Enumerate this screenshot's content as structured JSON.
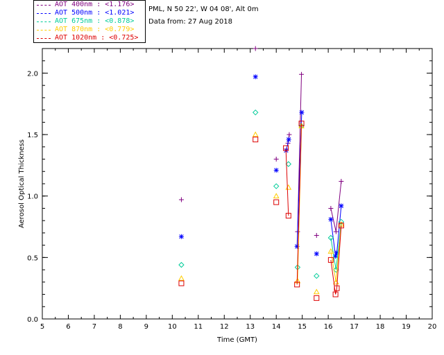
{
  "header": {
    "location": "PML, N 50 22', W 04 08', Alt 0m",
    "date": "Data from: 27 Aug 2018"
  },
  "legend": [
    {
      "label": "AOT  400nm : <1.176>",
      "color": "#800080"
    },
    {
      "label": "AOT  500nm : <1.021>",
      "color": "#0000ff"
    },
    {
      "label": "AOT  675nm : <0.878>",
      "color": "#00cc99"
    },
    {
      "label": "AOT  870nm : <0.779>",
      "color": "#ffcc00"
    },
    {
      "label": "AOT 1020nm : <0.725>",
      "color": "#dd0000"
    }
  ],
  "chart_data": {
    "type": "line",
    "title": "",
    "xlabel": "Time (GMT)",
    "ylabel": "Aerosol Optical Thickness",
    "xlim": [
      5,
      20
    ],
    "ylim": [
      0.0,
      2.2
    ],
    "xticks": [
      5,
      6,
      7,
      8,
      9,
      10,
      11,
      12,
      13,
      14,
      15,
      16,
      17,
      18,
      19,
      20
    ],
    "yticks": [
      0.0,
      0.5,
      1.0,
      1.5,
      2.0
    ],
    "ytick_labels": [
      "0.0",
      "0.5",
      "1.0",
      "1.5",
      "2.0"
    ],
    "series": [
      {
        "name": "AOT 400nm",
        "color": "#800080",
        "marker": "plus",
        "points": [
          [
            10.35,
            0.97
          ],
          [
            13.2,
            2.2
          ],
          [
            14.0,
            1.3
          ],
          [
            14.45,
            1.43
          ],
          [
            14.5,
            1.5
          ],
          [
            14.82,
            0.71
          ],
          [
            14.97,
            1.99
          ],
          [
            15.55,
            0.68
          ],
          [
            16.1,
            0.9
          ],
          [
            16.3,
            0.71
          ],
          [
            16.5,
            1.12
          ]
        ],
        "segments": [
          [
            [
              14.45,
              1.43
            ],
            [
              14.5,
              1.5
            ]
          ],
          [
            [
              14.82,
              0.71
            ],
            [
              14.97,
              1.99
            ]
          ],
          [
            [
              16.1,
              0.9
            ],
            [
              16.3,
              0.71
            ],
            [
              16.5,
              1.12
            ]
          ]
        ]
      },
      {
        "name": "AOT 500nm",
        "color": "#0000ff",
        "marker": "asterisk",
        "points": [
          [
            10.35,
            0.67
          ],
          [
            13.2,
            1.97
          ],
          [
            14.0,
            1.21
          ],
          [
            14.38,
            1.37
          ],
          [
            14.48,
            1.46
          ],
          [
            14.8,
            0.59
          ],
          [
            14.98,
            1.68
          ],
          [
            15.55,
            0.53
          ],
          [
            16.1,
            0.81
          ],
          [
            16.28,
            0.51
          ],
          [
            16.33,
            0.54
          ],
          [
            16.5,
            0.92
          ]
        ],
        "segments": [
          [
            [
              14.38,
              1.37
            ],
            [
              14.48,
              1.46
            ]
          ],
          [
            [
              14.8,
              0.59
            ],
            [
              14.98,
              1.68
            ]
          ],
          [
            [
              16.1,
              0.81
            ],
            [
              16.28,
              0.51
            ],
            [
              16.33,
              0.54
            ],
            [
              16.5,
              0.92
            ]
          ]
        ]
      },
      {
        "name": "AOT 675nm",
        "color": "#00cc99",
        "marker": "diamond",
        "points": [
          [
            10.35,
            0.44
          ],
          [
            13.2,
            1.68
          ],
          [
            14.0,
            1.08
          ],
          [
            14.47,
            1.26
          ],
          [
            14.82,
            0.42
          ],
          [
            14.97,
            1.57
          ],
          [
            15.55,
            0.35
          ],
          [
            16.1,
            0.66
          ],
          [
            16.3,
            0.4
          ],
          [
            16.5,
            0.79
          ]
        ],
        "segments": [
          [
            [
              14.82,
              0.42
            ],
            [
              14.97,
              1.57
            ]
          ],
          [
            [
              16.1,
              0.66
            ],
            [
              16.3,
              0.4
            ],
            [
              16.5,
              0.79
            ]
          ]
        ]
      },
      {
        "name": "AOT 870nm",
        "color": "#ffcc00",
        "marker": "triangle",
        "points": [
          [
            10.35,
            0.33
          ],
          [
            13.2,
            1.5
          ],
          [
            14.0,
            1.0
          ],
          [
            14.47,
            1.07
          ],
          [
            14.82,
            0.31
          ],
          [
            14.97,
            1.57
          ],
          [
            15.55,
            0.22
          ],
          [
            16.1,
            0.55
          ],
          [
            16.3,
            0.3
          ],
          [
            16.5,
            0.77
          ]
        ],
        "segments": [
          [
            [
              14.82,
              0.31
            ],
            [
              14.97,
              1.57
            ]
          ],
          [
            [
              16.1,
              0.55
            ],
            [
              16.3,
              0.3
            ],
            [
              16.5,
              0.77
            ]
          ]
        ]
      },
      {
        "name": "AOT 1020nm",
        "color": "#dd0000",
        "marker": "square",
        "points": [
          [
            10.35,
            0.29
          ],
          [
            13.2,
            1.46
          ],
          [
            14.0,
            0.95
          ],
          [
            14.37,
            1.39
          ],
          [
            14.47,
            0.84
          ],
          [
            14.8,
            0.28
          ],
          [
            14.97,
            1.59
          ],
          [
            15.55,
            0.17
          ],
          [
            16.1,
            0.48
          ],
          [
            16.28,
            0.2
          ],
          [
            16.33,
            0.25
          ],
          [
            16.5,
            0.76
          ]
        ],
        "segments": [
          [
            [
              14.37,
              1.39
            ],
            [
              14.47,
              0.84
            ]
          ],
          [
            [
              14.8,
              0.28
            ],
            [
              14.97,
              1.59
            ]
          ],
          [
            [
              16.1,
              0.48
            ],
            [
              16.28,
              0.2
            ],
            [
              16.33,
              0.25
            ],
            [
              16.5,
              0.76
            ]
          ]
        ]
      }
    ]
  }
}
